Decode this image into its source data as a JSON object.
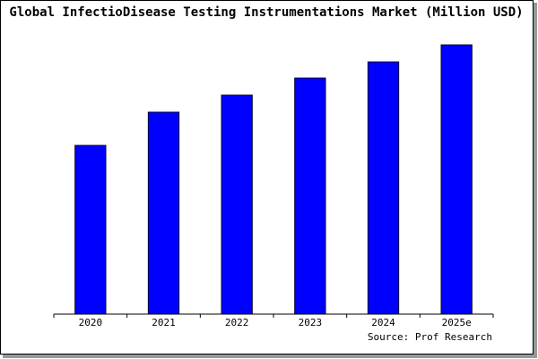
{
  "chart_data": {
    "type": "bar",
    "title": "Global InfectioDisease Testing Instrumentations Market (Million USD)",
    "categories": [
      "2020",
      "2021",
      "2022",
      "2023",
      "2024",
      "2025e"
    ],
    "values": [
      188,
      225,
      244,
      263,
      281,
      300
    ],
    "color": "#0000ff",
    "ylim": [
      0,
      300
    ],
    "source": "Source: Prof Research"
  }
}
